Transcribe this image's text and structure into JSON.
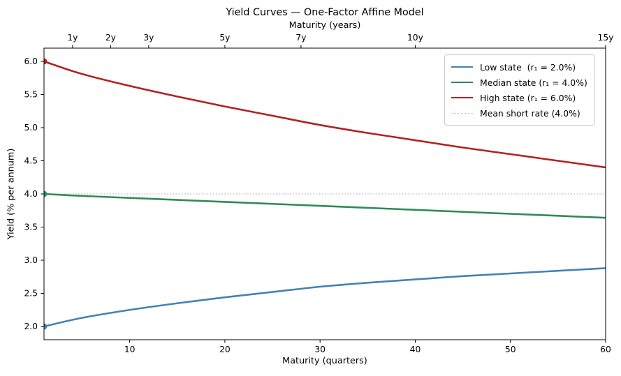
{
  "title": "Yield Curves — One-Factor Affine Model",
  "axes": {
    "top": {
      "label": "Maturity (years)"
    },
    "bottom": {
      "label": "Maturity (quarters)"
    },
    "left": {
      "label": "Yield (% per annum)"
    }
  },
  "legend": {
    "position": "upper right",
    "entries": [
      "Low state  (r₁ = 2.0%)",
      "Median state (r₁ = 4.0%)",
      "High state (r₁ = 6.0%)",
      "Mean short rate (4.0%)"
    ]
  },
  "chart_data": {
    "type": "line",
    "title": "Yield Curves — One-Factor Affine Model",
    "xlabel": "Maturity (quarters)",
    "top_xlabel": "Maturity (years)",
    "ylabel": "Yield (% per annum)",
    "xlim": [
      1,
      60
    ],
    "ylim": [
      1.8,
      6.2
    ],
    "grid": false,
    "legend_position": "upper right",
    "x_ticks": [
      10,
      20,
      30,
      40,
      50,
      60
    ],
    "y_ticks": [
      2.0,
      2.5,
      3.0,
      3.5,
      4.0,
      4.5,
      5.0,
      5.5,
      6.0
    ],
    "top_ticks": [
      {
        "quarters": 4,
        "label": "1y"
      },
      {
        "quarters": 8,
        "label": "2y"
      },
      {
        "quarters": 12,
        "label": "3y"
      },
      {
        "quarters": 20,
        "label": "5y"
      },
      {
        "quarters": 28,
        "label": "7y"
      },
      {
        "quarters": 40,
        "label": "10y"
      },
      {
        "quarters": 60,
        "label": "15y"
      }
    ],
    "x": [
      1,
      5,
      10,
      15,
      20,
      25,
      30,
      35,
      40,
      45,
      50,
      55,
      60
    ],
    "series": [
      {
        "name": "Low state  (r₁ = 2.0%)",
        "color": "#4682B4",
        "start_marker": true,
        "values": [
          2.0,
          2.13,
          2.25,
          2.35,
          2.44,
          2.52,
          2.6,
          2.66,
          2.71,
          2.76,
          2.8,
          2.84,
          2.88
        ]
      },
      {
        "name": "Median state (r₁ = 4.0%)",
        "color": "#2E8B57",
        "start_marker": true,
        "values": [
          4.0,
          3.97,
          3.94,
          3.91,
          3.88,
          3.85,
          3.82,
          3.79,
          3.76,
          3.73,
          3.7,
          3.67,
          3.64
        ]
      },
      {
        "name": "High state (r₁ = 6.0%)",
        "color": "#B22222",
        "start_marker": true,
        "values": [
          6.0,
          5.81,
          5.63,
          5.47,
          5.32,
          5.18,
          5.04,
          4.92,
          4.81,
          4.7,
          4.6,
          4.5,
          4.4
        ]
      }
    ],
    "reference_line": {
      "name": "Mean short rate (4.0%)",
      "y": 4.0,
      "color": "#C3C3C3",
      "style": "dotted"
    }
  }
}
